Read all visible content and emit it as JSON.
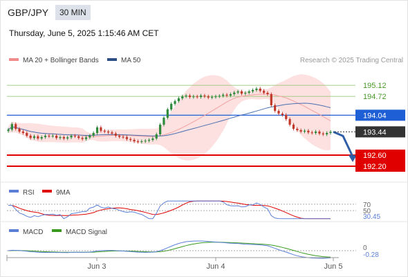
{
  "header": {
    "symbol": "GBP/JPY",
    "interval": "30 MIN",
    "datetime": "Thursday, June 5, 2025 1:15:46 AM CET"
  },
  "colors": {
    "candle_up": "#2f8a3c",
    "candle_down": "#c0392b",
    "bollinger_fill": "#fde0e0",
    "ma20": "#f2a3a3",
    "ma50": "#4a6fb0",
    "resistance_line": "#9bc67a",
    "pivot_line": "#1f5fd6",
    "support_line": "#e00000",
    "current_price": "#333333",
    "arrow": "#2f5ea8",
    "rsi": "#5b7fd6",
    "rsi_9ma": "#e00000",
    "macd": "#5b7fd6",
    "macd_signal": "#3a9a20"
  },
  "chart_data": [
    {
      "type": "candlestick",
      "title": "GBP/JPY",
      "legend": [
        {
          "name": "MA 20 + Bollinger Bands",
          "color": "#f28b8b"
        },
        {
          "name": "MA 50",
          "color": "#2c4f86"
        }
      ],
      "copyright": "Research © 2025 Trading Central",
      "ylim": [
        191.7,
        195.7
      ],
      "x_ticks": [
        "Jun 3",
        "Jun 4",
        "Jun 5"
      ],
      "levels": [
        {
          "label": "195.12",
          "value": 195.12,
          "kind": "resistance"
        },
        {
          "label": "194.72",
          "value": 194.72,
          "kind": "resistance"
        },
        {
          "label": "194.04",
          "value": 194.04,
          "kind": "pivot"
        },
        {
          "label": "193.44",
          "value": 193.44,
          "kind": "current"
        },
        {
          "label": "192.60",
          "value": 192.6,
          "kind": "support"
        },
        {
          "label": "192.20",
          "value": 192.2,
          "kind": "support"
        }
      ],
      "forecast": {
        "from": 193.44,
        "to": 192.2
      },
      "closes": [
        193.52,
        193.72,
        193.55,
        193.45,
        193.4,
        193.3,
        193.22,
        193.28,
        193.2,
        193.25,
        193.3,
        193.28,
        193.3,
        193.22,
        193.25,
        193.2,
        193.24,
        193.3,
        193.28,
        193.22,
        193.18,
        193.24,
        193.3,
        193.4,
        193.6,
        193.48,
        193.45,
        193.42,
        193.38,
        193.3,
        193.26,
        193.25,
        193.18,
        193.15,
        193.1,
        193.08,
        193.1,
        193.12,
        193.15,
        193.2,
        193.35,
        193.7,
        193.95,
        194.25,
        194.45,
        194.55,
        194.65,
        194.72,
        194.75,
        194.7,
        194.72,
        194.7,
        194.75,
        194.72,
        194.68,
        194.7,
        194.72,
        194.74,
        194.78,
        194.75,
        194.8,
        194.86,
        194.9,
        194.82,
        194.85,
        194.9,
        194.95,
        195.0,
        194.92,
        194.85,
        194.8,
        194.4,
        194.2,
        194.1,
        194.05,
        193.9,
        193.7,
        193.55,
        193.5,
        193.45,
        193.48,
        193.42,
        193.4,
        193.45,
        193.38,
        193.35,
        193.4,
        193.44
      ]
    },
    {
      "type": "line",
      "title": "RSI",
      "series": [
        {
          "name": "RSI"
        },
        {
          "name": "9MA"
        }
      ],
      "ylim": [
        20,
        85
      ],
      "y_ticks": [
        {
          "label": "70",
          "value": 70
        },
        {
          "label": "50",
          "value": 50
        }
      ],
      "current_value": "30.45"
    },
    {
      "type": "line",
      "title": "MACD",
      "series": [
        {
          "name": "MACD"
        },
        {
          "name": "MACD Signal"
        }
      ],
      "y_ticks": [
        {
          "label": "0",
          "value": 0
        }
      ],
      "current_value": "-0.28"
    }
  ]
}
